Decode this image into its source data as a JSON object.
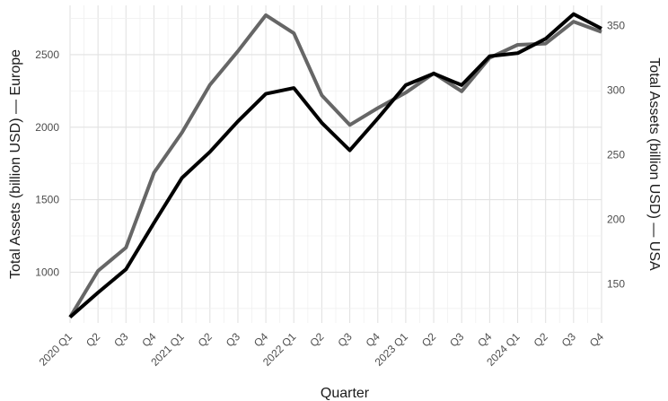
{
  "chart_data": {
    "type": "line",
    "xlabel": "Quarter",
    "ylabel_left": "Total Assets (billion USD) — Europe",
    "ylabel_right": "Total Assets (billion USD) — USA",
    "categories": [
      "2020 Q1",
      "Q2",
      "Q3",
      "Q4",
      "2021 Q1",
      "Q2",
      "Q3",
      "Q4",
      "2022 Q1",
      "Q2",
      "Q3",
      "Q4",
      "2023 Q1",
      "Q2",
      "Q3",
      "Q4",
      "2024 Q1",
      "Q2",
      "Q3",
      "Q4"
    ],
    "y_left": {
      "ticks": [
        1000,
        1500,
        2000,
        2500
      ],
      "range": [
        650,
        2840
      ]
    },
    "y_right": {
      "ticks": [
        150,
        200,
        250,
        300,
        350
      ],
      "range": [
        119.6,
        365.6
      ]
    },
    "grid": true,
    "legend": "none",
    "series": [
      {
        "axis": "left",
        "color": "#000000",
        "values": [
          690,
          860,
          1020,
          1340,
          1650,
          1830,
          2040,
          2230,
          2270,
          2030,
          1840,
          2060,
          2290,
          2370,
          2290,
          2490,
          2510,
          2610,
          2780,
          2680
        ]
      },
      {
        "axis": "right",
        "color": "#666666",
        "values": [
          124,
          160,
          178,
          236,
          267,
          304,
          330,
          358,
          344,
          296,
          273,
          286,
          298,
          313,
          299,
          325,
          335,
          336,
          353,
          345
        ]
      }
    ]
  }
}
